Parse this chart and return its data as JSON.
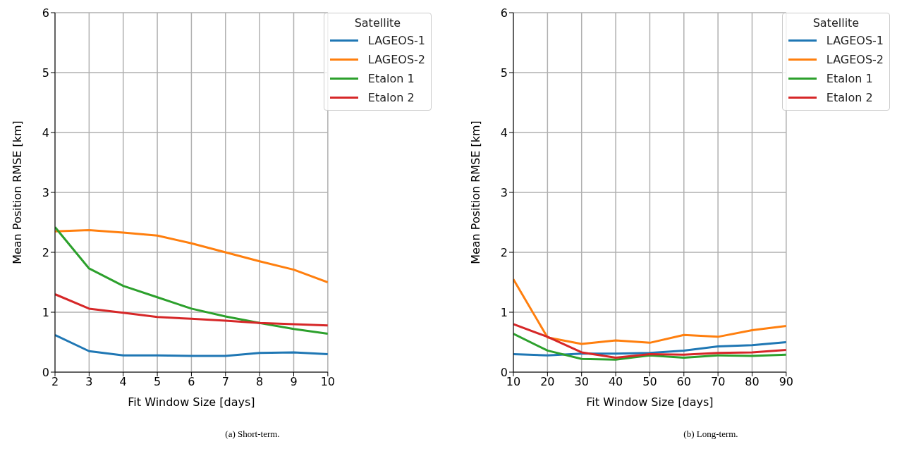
{
  "chart_data": [
    {
      "type": "line",
      "xlabel": "Fit Window Size [days]",
      "ylabel": "Mean Position RMSE [km]",
      "legend_title": "Satellite",
      "legend": "top right",
      "grid": true,
      "annotations": [
        "(a) Short-term."
      ],
      "x": [
        2,
        3,
        4,
        5,
        6,
        7,
        8,
        9,
        10
      ],
      "xlim": [
        2,
        10
      ],
      "xticks": [
        2,
        3,
        4,
        5,
        6,
        7,
        8,
        9,
        10
      ],
      "ylim": [
        0,
        6
      ],
      "yticks": [
        0,
        1,
        2,
        3,
        4,
        5,
        6
      ],
      "series": [
        {
          "name": "LAGEOS-1",
          "color": "#1f77b4",
          "values": [
            0.62,
            0.35,
            0.28,
            0.28,
            0.27,
            0.27,
            0.32,
            0.33,
            0.3
          ]
        },
        {
          "name": "LAGEOS-2",
          "color": "#ff7f0e",
          "values": [
            2.35,
            2.37,
            2.33,
            2.28,
            2.15,
            2.0,
            1.85,
            1.71,
            1.5
          ]
        },
        {
          "name": "Etalon 1",
          "color": "#2ca02c",
          "values": [
            2.42,
            1.73,
            1.44,
            1.25,
            1.06,
            0.93,
            0.82,
            0.72,
            0.64
          ]
        },
        {
          "name": "Etalon 2",
          "color": "#d62728",
          "values": [
            1.3,
            1.06,
            0.99,
            0.92,
            0.89,
            0.86,
            0.82,
            0.8,
            0.78
          ]
        }
      ]
    },
    {
      "type": "line",
      "xlabel": "Fit Window Size [days]",
      "ylabel": "Mean Position RMSE [km]",
      "legend_title": "Satellite",
      "legend": "top right",
      "grid": true,
      "annotations": [
        "(b) Long-term."
      ],
      "x": [
        10,
        20,
        30,
        40,
        50,
        60,
        70,
        80,
        90
      ],
      "xlim": [
        10,
        90
      ],
      "xticks": [
        10,
        20,
        30,
        40,
        50,
        60,
        70,
        80,
        90
      ],
      "ylim": [
        0,
        6
      ],
      "yticks": [
        0,
        1,
        2,
        3,
        4,
        5,
        6
      ],
      "series": [
        {
          "name": "LAGEOS-1",
          "color": "#1f77b4",
          "values": [
            0.3,
            0.28,
            0.31,
            0.31,
            0.32,
            0.36,
            0.43,
            0.45,
            0.5
          ]
        },
        {
          "name": "LAGEOS-2",
          "color": "#ff7f0e",
          "values": [
            1.55,
            0.58,
            0.47,
            0.53,
            0.49,
            0.62,
            0.59,
            0.7,
            0.77
          ]
        },
        {
          "name": "Etalon 1",
          "color": "#2ca02c",
          "values": [
            0.64,
            0.36,
            0.22,
            0.21,
            0.28,
            0.24,
            0.28,
            0.27,
            0.29
          ]
        },
        {
          "name": "Etalon 2",
          "color": "#d62728",
          "values": [
            0.8,
            0.59,
            0.33,
            0.24,
            0.3,
            0.29,
            0.32,
            0.33,
            0.37
          ]
        }
      ]
    }
  ]
}
